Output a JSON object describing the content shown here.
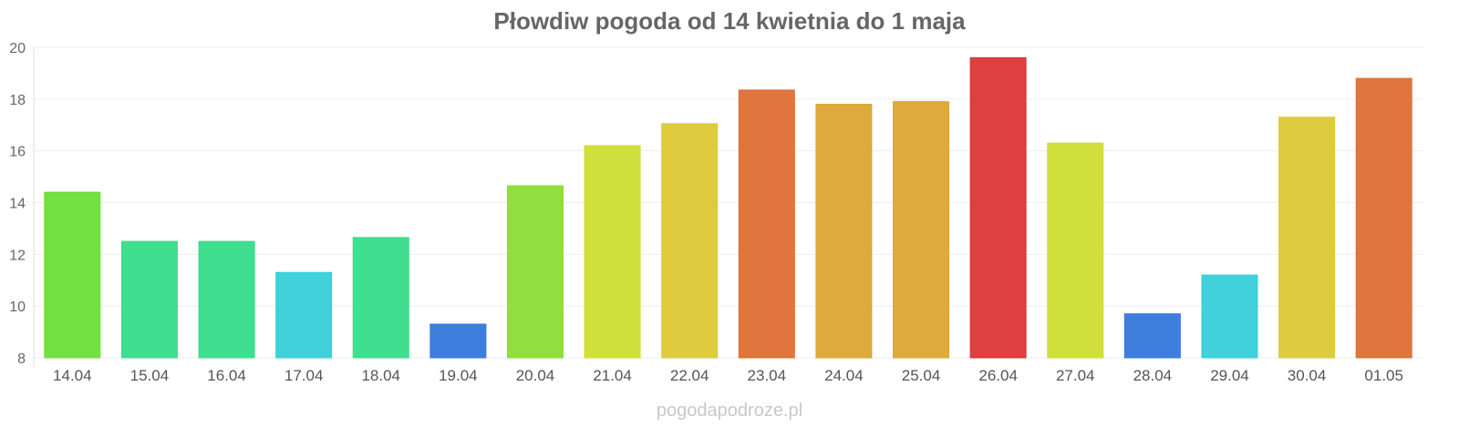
{
  "chart_data": {
    "type": "bar",
    "title": "Płowdiw pogoda od 14 kwietnia do 1 maja",
    "categories": [
      "14.04",
      "15.04",
      "16.04",
      "17.04",
      "18.04",
      "19.04",
      "20.04",
      "21.04",
      "22.04",
      "23.04",
      "24.04",
      "25.04",
      "26.04",
      "27.04",
      "28.04",
      "29.04",
      "30.04",
      "01.05"
    ],
    "values": [
      14.4,
      12.5,
      12.5,
      11.3,
      12.65,
      9.3,
      14.65,
      16.2,
      17.05,
      18.35,
      17.8,
      17.9,
      19.6,
      16.3,
      9.7,
      11.2,
      17.3,
      18.8
    ],
    "colors": [
      "#6ade35",
      "#36dd8a",
      "#36dd8a",
      "#36cfd9",
      "#36dd8a",
      "#3478dc",
      "#8bdd35",
      "#cddd30",
      "#dcc934",
      "#dc6f33",
      "#dca533",
      "#dca533",
      "#dc3535",
      "#cddd30",
      "#3478dc",
      "#36cfd9",
      "#dcc934",
      "#dc6f33"
    ],
    "yticks": [
      8,
      10,
      12,
      14,
      16,
      18,
      20
    ],
    "ylim": [
      8,
      20
    ],
    "xlabel": "",
    "ylabel": "",
    "grid": true
  },
  "watermark": "pogodapodroze.pl"
}
